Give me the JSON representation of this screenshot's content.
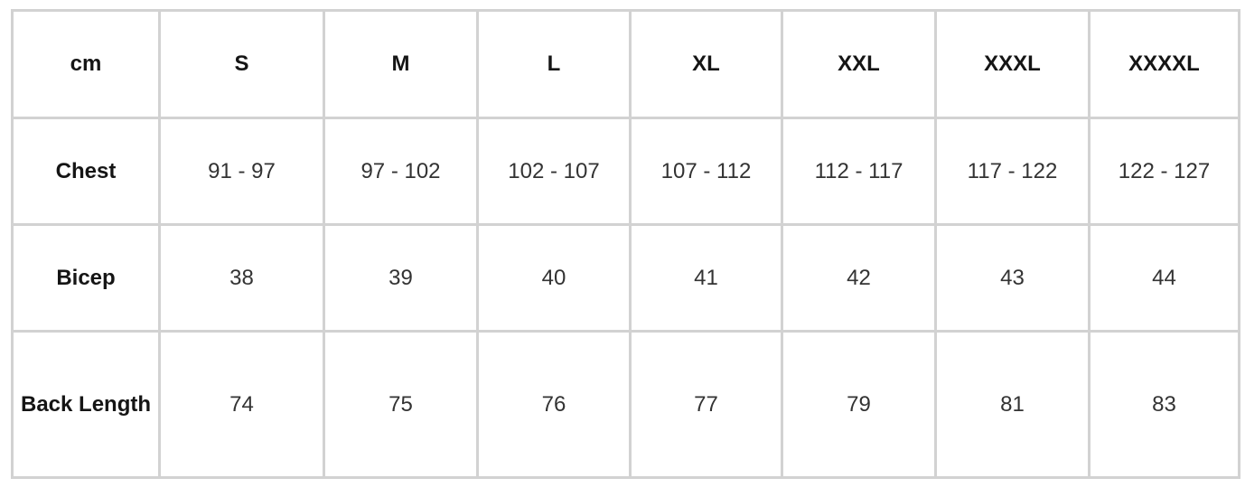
{
  "table": {
    "header": [
      "cm",
      "S",
      "M",
      "L",
      "XL",
      "XXL",
      "XXXL",
      "XXXXL"
    ],
    "rows": [
      [
        "Chest",
        "91 - 97",
        "97 - 102",
        "102 - 107",
        "107 - 112",
        "112 - 117",
        "117 - 122",
        "122 - 127"
      ],
      [
        "Bicep",
        "38",
        "39",
        "40",
        "41",
        "42",
        "43",
        "44"
      ],
      [
        "Back Length",
        "74",
        "75",
        "76",
        "77",
        "79",
        "81",
        "83"
      ]
    ]
  }
}
